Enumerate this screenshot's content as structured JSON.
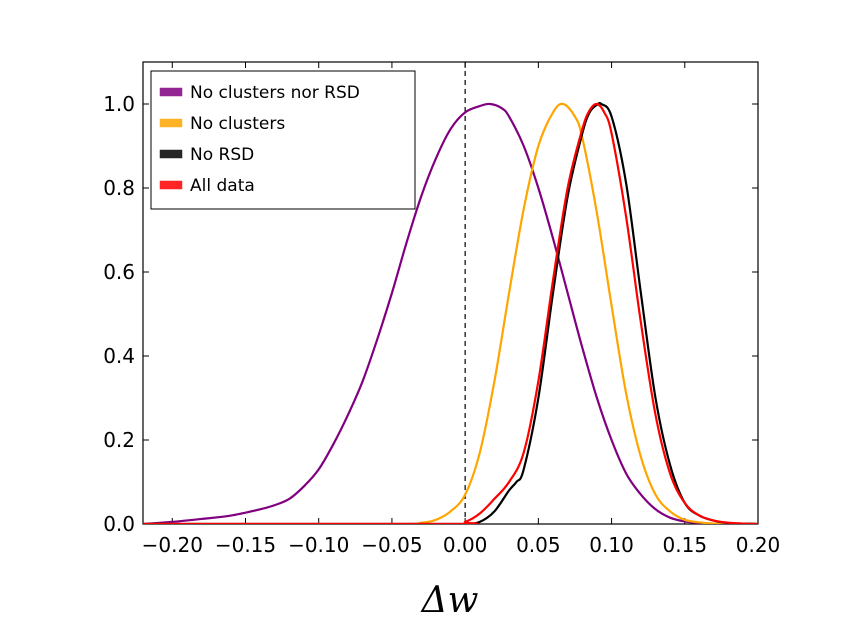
{
  "chart_data": {
    "type": "line",
    "title": "",
    "xlabel": "Δw",
    "ylabel": "",
    "xlim": [
      -0.22,
      0.2
    ],
    "ylim": [
      0.0,
      1.1
    ],
    "xticks": [
      -0.2,
      -0.15,
      -0.1,
      -0.05,
      0.0,
      0.05,
      0.1,
      0.15,
      0.2
    ],
    "xtick_labels": [
      "−0.20",
      "−0.15",
      "−0.10",
      "−0.05",
      "0.00",
      "0.05",
      "0.10",
      "0.15",
      "0.20"
    ],
    "yticks": [
      0.0,
      0.2,
      0.4,
      0.6,
      0.8,
      1.0
    ],
    "ytick_labels": [
      "0.0",
      "0.2",
      "0.4",
      "0.6",
      "0.8",
      "1.0"
    ],
    "reference_line": {
      "x": 0.0,
      "style": "dashed",
      "color": "#000000"
    },
    "legend_position": "top-left",
    "series": [
      {
        "name": "No clusters nor RSD",
        "color": "#800080",
        "x": [
          -0.22,
          -0.2,
          -0.18,
          -0.16,
          -0.14,
          -0.13,
          -0.12,
          -0.11,
          -0.1,
          -0.09,
          -0.08,
          -0.07,
          -0.06,
          -0.05,
          -0.04,
          -0.03,
          -0.02,
          -0.01,
          0.0,
          0.01,
          0.017,
          0.025,
          0.03,
          0.04,
          0.05,
          0.06,
          0.07,
          0.08,
          0.09,
          0.1,
          0.11,
          0.12,
          0.13,
          0.14,
          0.15,
          0.16,
          0.17,
          0.18,
          0.2
        ],
        "y": [
          0.0,
          0.005,
          0.012,
          0.02,
          0.035,
          0.045,
          0.06,
          0.09,
          0.13,
          0.19,
          0.26,
          0.34,
          0.44,
          0.55,
          0.67,
          0.78,
          0.87,
          0.94,
          0.98,
          0.995,
          1.0,
          0.99,
          0.97,
          0.9,
          0.8,
          0.68,
          0.55,
          0.42,
          0.3,
          0.2,
          0.12,
          0.07,
          0.035,
          0.015,
          0.006,
          0.002,
          0.001,
          0.0,
          0.0
        ]
      },
      {
        "name": "No clusters",
        "color": "#FFA500",
        "x": [
          -0.22,
          -0.05,
          -0.03,
          -0.02,
          -0.01,
          0.0,
          0.01,
          0.02,
          0.03,
          0.04,
          0.05,
          0.06,
          0.067,
          0.075,
          0.08,
          0.09,
          0.1,
          0.11,
          0.12,
          0.13,
          0.14,
          0.15,
          0.16,
          0.17,
          0.2
        ],
        "y": [
          0.0,
          0.0,
          0.003,
          0.01,
          0.03,
          0.07,
          0.17,
          0.34,
          0.55,
          0.75,
          0.9,
          0.98,
          1.0,
          0.97,
          0.92,
          0.74,
          0.52,
          0.31,
          0.16,
          0.07,
          0.03,
          0.01,
          0.004,
          0.001,
          0.0
        ]
      },
      {
        "name": "No RSD",
        "color": "#000000",
        "x": [
          -0.22,
          -0.02,
          0.0,
          0.01,
          0.02,
          0.03,
          0.035,
          0.04,
          0.05,
          0.06,
          0.07,
          0.08,
          0.085,
          0.09,
          0.093,
          0.1,
          0.11,
          0.12,
          0.13,
          0.14,
          0.15,
          0.16,
          0.17,
          0.18,
          0.19,
          0.2
        ],
        "y": [
          0.0,
          0.0,
          0.0,
          0.005,
          0.03,
          0.08,
          0.1,
          0.13,
          0.3,
          0.55,
          0.78,
          0.93,
          0.98,
          0.998,
          1.0,
          0.97,
          0.81,
          0.55,
          0.3,
          0.14,
          0.05,
          0.02,
          0.008,
          0.002,
          0.001,
          0.0
        ]
      },
      {
        "name": "All data",
        "color": "#FF0000",
        "x": [
          -0.22,
          -0.01,
          0.0,
          0.01,
          0.02,
          0.03,
          0.04,
          0.05,
          0.06,
          0.07,
          0.08,
          0.085,
          0.09,
          0.095,
          0.1,
          0.11,
          0.12,
          0.13,
          0.14,
          0.15,
          0.16,
          0.17,
          0.18,
          0.19,
          0.2
        ],
        "y": [
          0.0,
          0.0,
          0.005,
          0.025,
          0.06,
          0.1,
          0.17,
          0.34,
          0.58,
          0.8,
          0.94,
          0.985,
          1.0,
          0.98,
          0.93,
          0.73,
          0.48,
          0.26,
          0.12,
          0.05,
          0.02,
          0.008,
          0.003,
          0.001,
          0.0
        ]
      }
    ]
  }
}
